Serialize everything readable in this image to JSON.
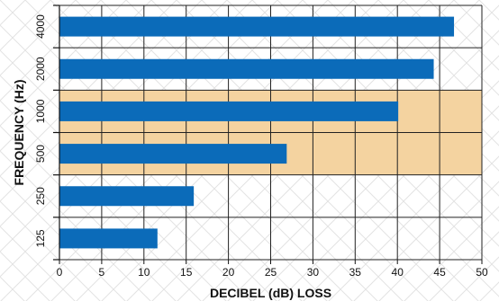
{
  "chart_data": {
    "type": "bar",
    "orientation": "horizontal",
    "categories": [
      "4000",
      "2000",
      "1000",
      "500",
      "250",
      "125"
    ],
    "values": [
      46.7,
      44.3,
      40.1,
      26.9,
      15.9,
      11.6
    ],
    "xlabel": "DECIBEL (dB) LOSS",
    "ylabel": "FREQUENCY (Hz)",
    "xlim": [
      0,
      50
    ],
    "x_ticks": [
      0,
      5,
      10,
      15,
      20,
      25,
      30,
      35,
      40,
      45,
      50
    ],
    "grid": true,
    "highlight_band_categories": [
      "1000",
      "500"
    ],
    "colors": {
      "bar": "#0b6bb9",
      "highlight_band": "#f4d3a0",
      "grid": "#222222",
      "background_pattern": "#d4d4d4"
    }
  }
}
